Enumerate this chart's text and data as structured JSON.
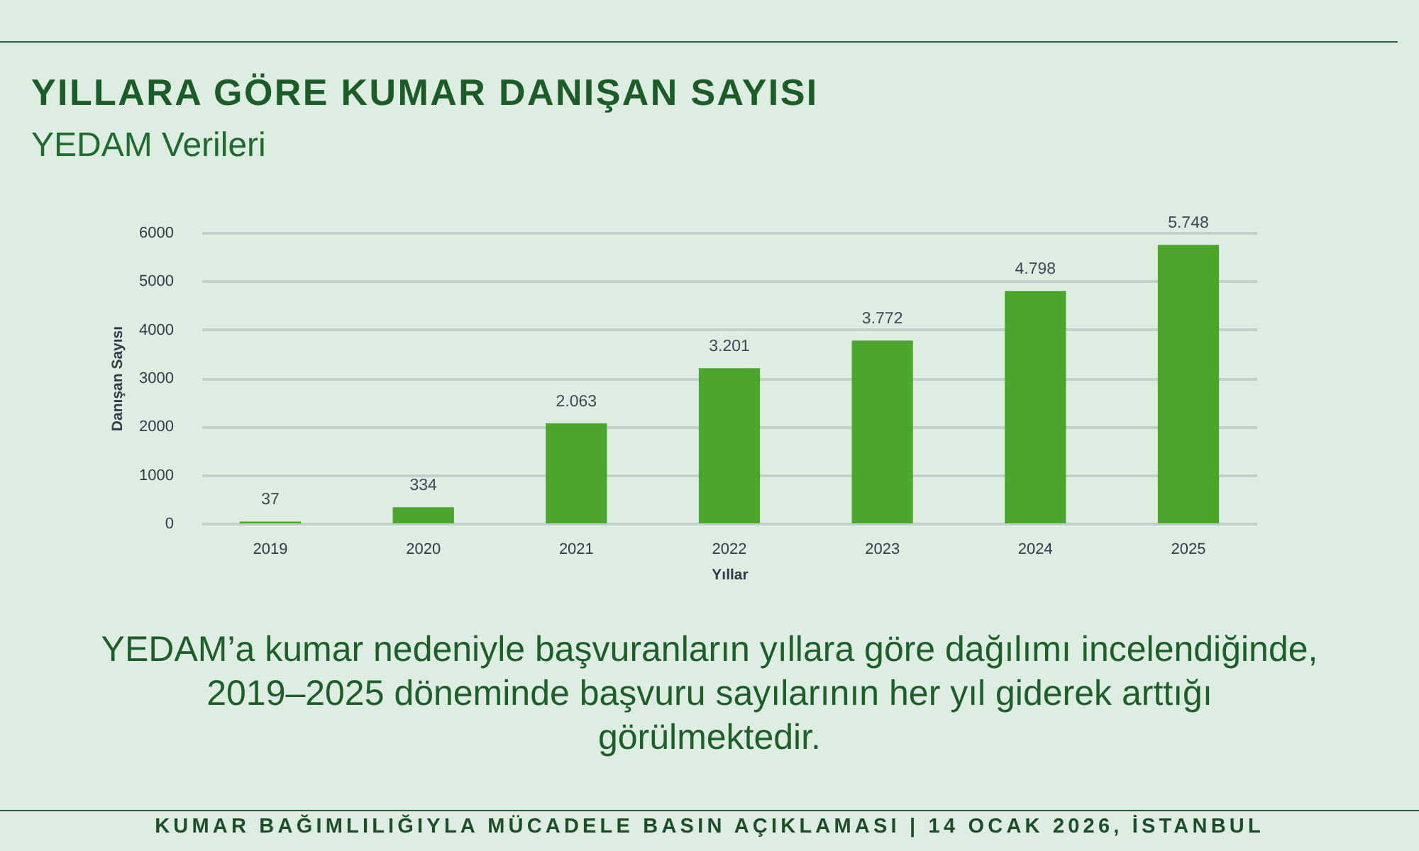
{
  "chart_data": {
    "type": "bar",
    "title": "YILLARA GÖRE KUMAR DANIŞAN SAYISI",
    "subtitle": "YEDAM Verileri",
    "xlabel": "Yıllar",
    "ylabel": "Danışan Sayısı",
    "categories": [
      "2019",
      "2020",
      "2021",
      "2022",
      "2023",
      "2024",
      "2025"
    ],
    "values": [
      37,
      334,
      2063,
      3201,
      3772,
      4798,
      5748
    ],
    "value_labels": [
      "37",
      "334",
      "2.063",
      "3.201",
      "3.772",
      "4.798",
      "5.748"
    ],
    "color": "#4ca52d",
    "ylim": [
      0,
      6000
    ],
    "yticks": [
      0,
      1000,
      2000,
      3000,
      4000,
      5000,
      6000
    ],
    "grid": "y",
    "annotations": [
      "YEDAM’a kumar nedeniyle başvuranların yıllara göre dağılımı incelendiğinde, 2019–2025 döneminde başvuru sayılarının her yıl giderek arttığı görülmektedir.",
      "KUMAR BAĞIMLILIĞIYLA MÜCADELE BASIN AÇIKLAMASI | 14 OCAK 2026, İSTANBUL"
    ]
  }
}
